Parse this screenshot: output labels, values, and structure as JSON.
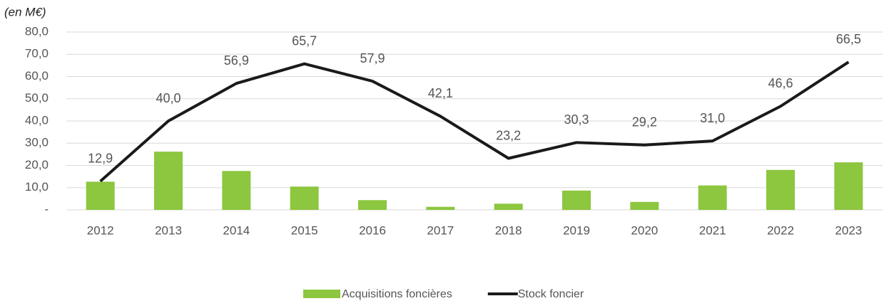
{
  "chart_data": {
    "type": "bar_line",
    "y_unit_label": "(en M€)",
    "categories": [
      "2012",
      "2013",
      "2014",
      "2015",
      "2016",
      "2017",
      "2018",
      "2019",
      "2020",
      "2021",
      "2022",
      "2023"
    ],
    "series": [
      {
        "name": "Acquisitions foncières",
        "type": "bar",
        "color": "#8dc63f",
        "values": [
          12.7,
          26.2,
          17.5,
          10.5,
          4.4,
          1.4,
          2.8,
          8.7,
          3.6,
          11.0,
          18.0,
          21.4
        ]
      },
      {
        "name": "Stock foncier",
        "type": "line",
        "color": "#1a1a1a",
        "values": [
          12.9,
          40.0,
          56.9,
          65.7,
          57.9,
          42.1,
          23.2,
          30.3,
          29.2,
          31.0,
          46.6,
          66.5
        ],
        "value_labels": [
          "12,9",
          "40,0",
          "56,9",
          "65,7",
          "57,9",
          "42,1",
          "23,2",
          "30,3",
          "29,2",
          "31,0",
          "46,6",
          "66,5"
        ]
      }
    ],
    "ylim": [
      0,
      80
    ],
    "yticks": [
      {
        "value": 0,
        "label": "-"
      },
      {
        "value": 10,
        "label": "10,0"
      },
      {
        "value": 20,
        "label": "20,0"
      },
      {
        "value": 30,
        "label": "30,0"
      },
      {
        "value": 40,
        "label": "40,0"
      },
      {
        "value": 50,
        "label": "50,0"
      },
      {
        "value": 60,
        "label": "60,0"
      },
      {
        "value": 70,
        "label": "70,0"
      },
      {
        "value": 80,
        "label": "80,0"
      }
    ],
    "grid": true,
    "legend": "bottom"
  }
}
